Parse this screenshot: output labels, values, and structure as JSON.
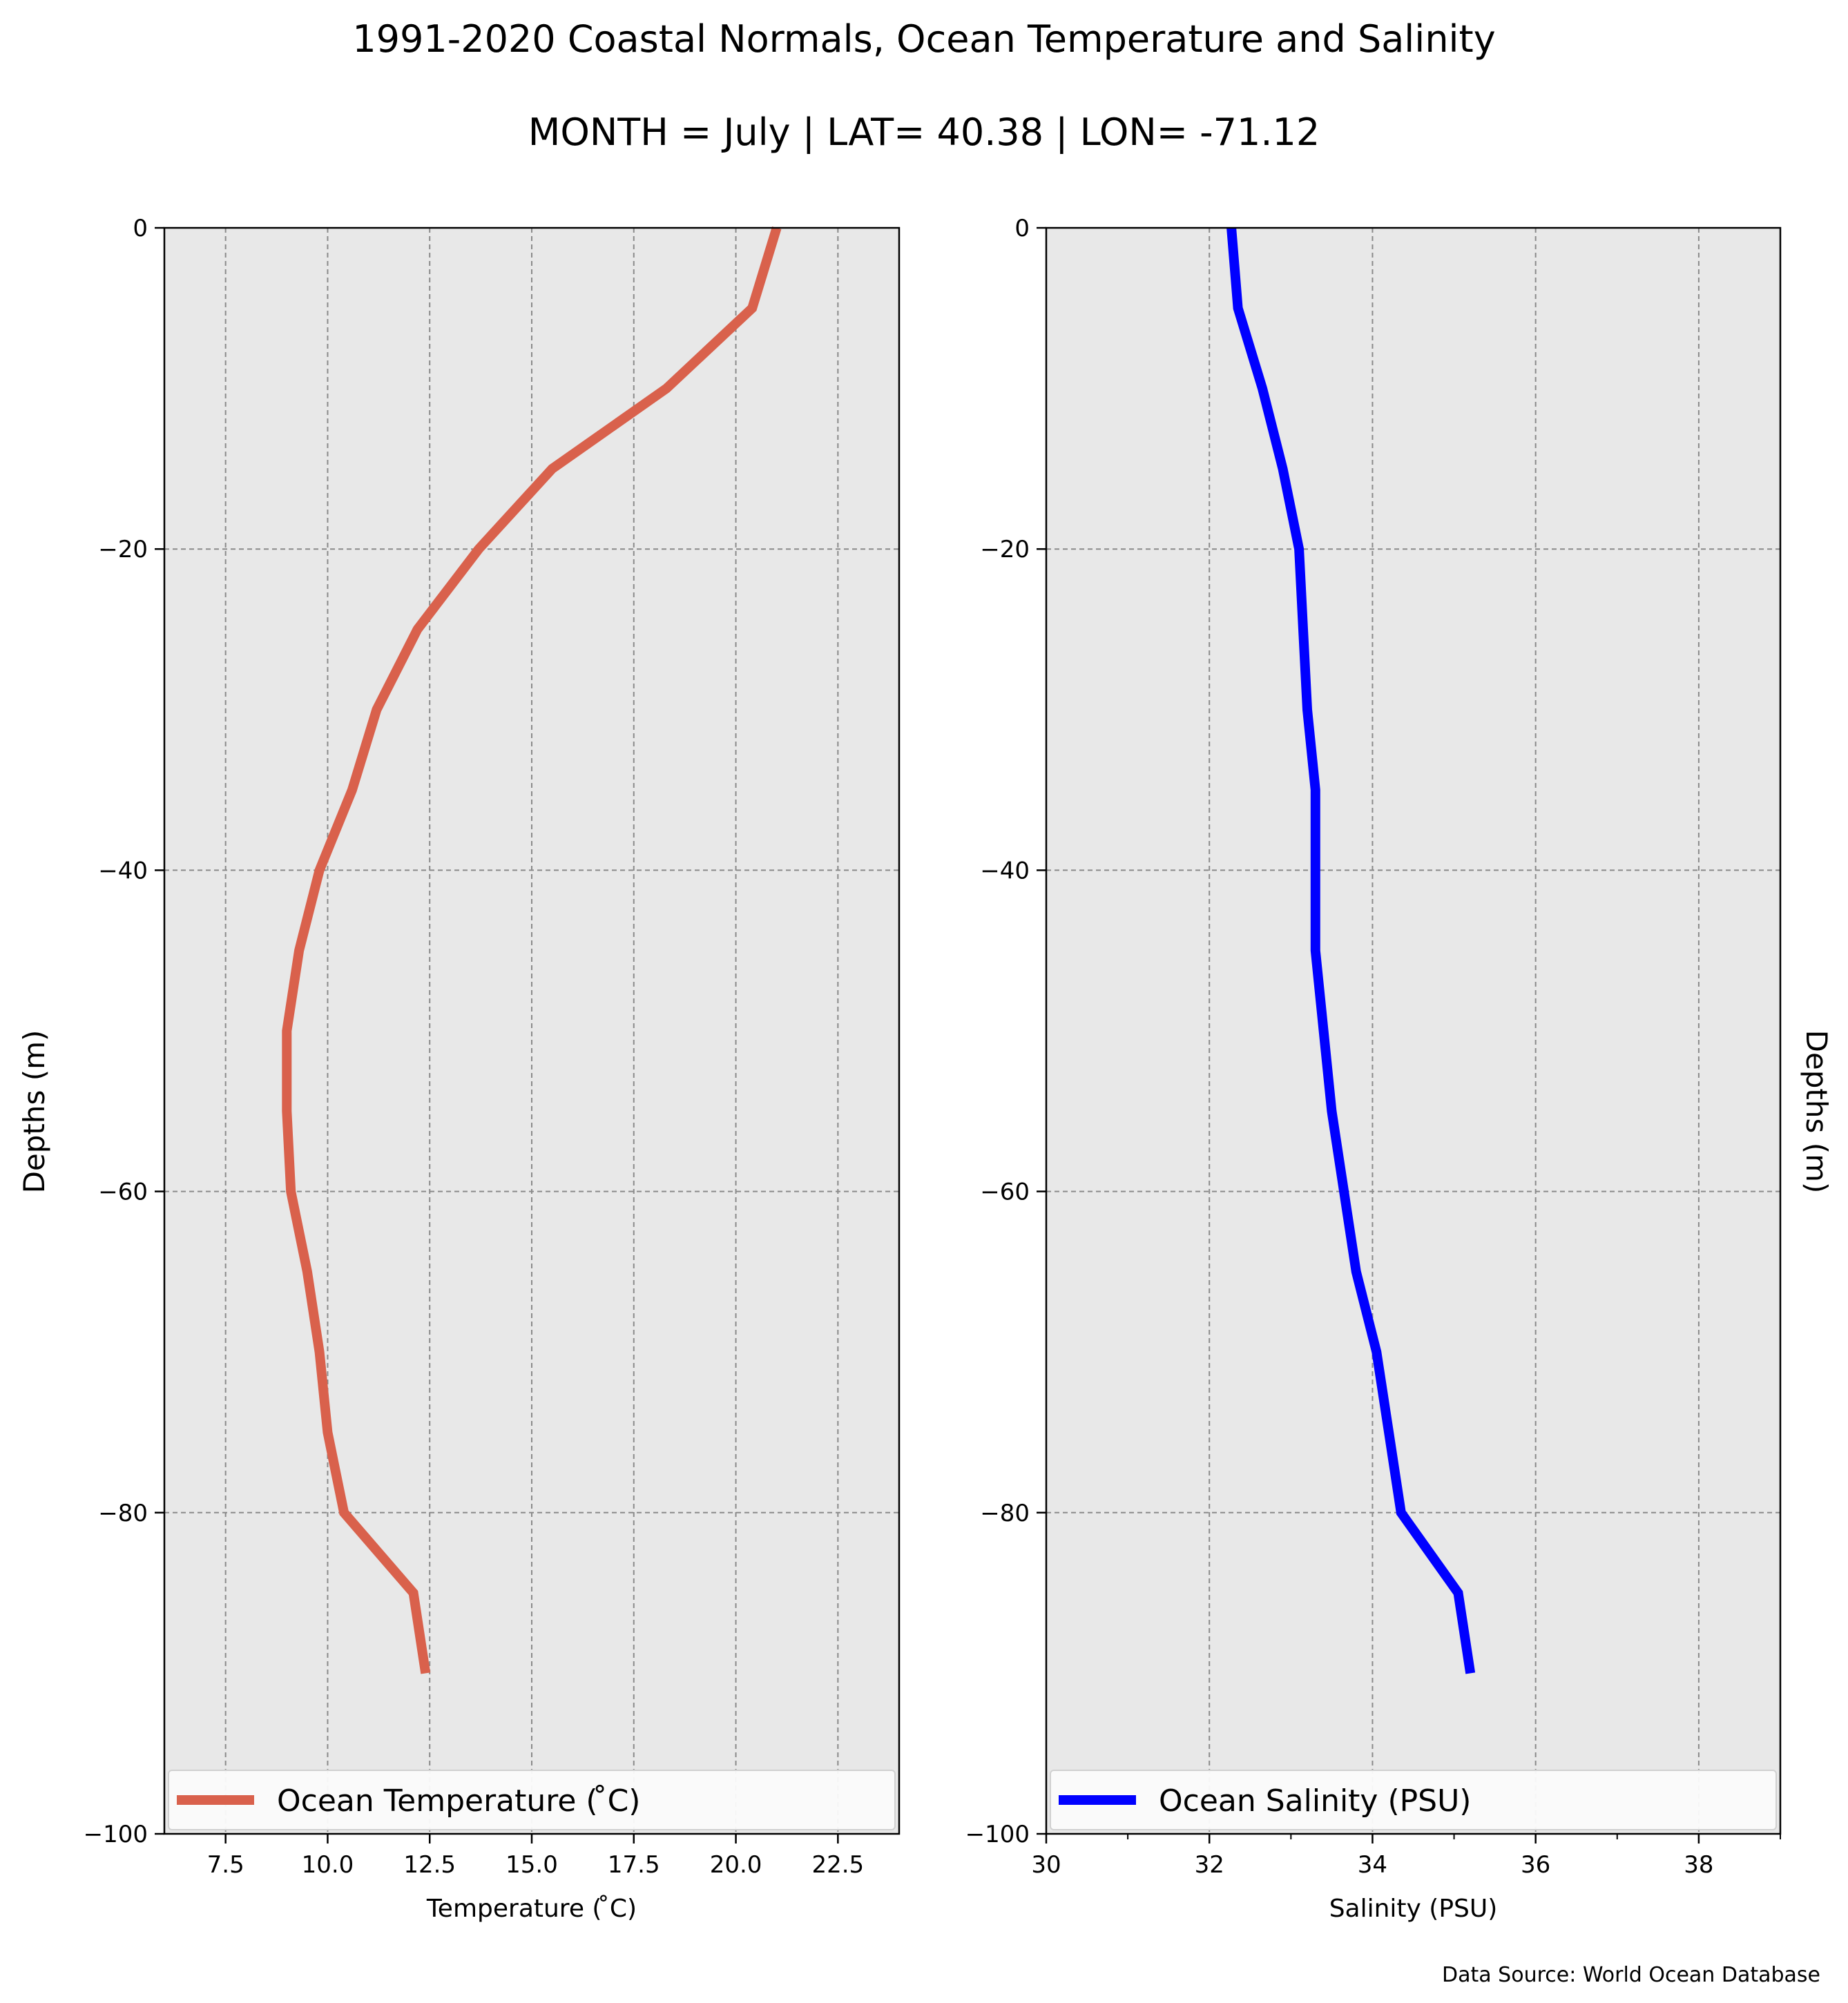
{
  "title": "1991-2020 Coastal Normals, Ocean Temperature and Salinity",
  "subtitle": "MONTH = July | LAT= 40.38 | LON= -71.12",
  "source": "Data Source: World Ocean Database",
  "colors": {
    "temperature": "#d9614c",
    "salinity": "#0000ff",
    "plot_bg": "#e8e8e8",
    "grid": "#8a8a8a"
  },
  "chart_data": [
    {
      "type": "line",
      "xlabel": "Temperature ($^\\circ$C)",
      "xlabel_display": "Temperature ( ̊C)",
      "ylabel": "Depths (m)",
      "xlim": [
        6,
        24
      ],
      "ylim": [
        -100,
        0
      ],
      "xticks": [
        7.5,
        10.0,
        12.5,
        15.0,
        17.5,
        20.0,
        22.5
      ],
      "xtick_labels": [
        "7.5",
        "10.0",
        "12.5",
        "15.0",
        "17.5",
        "20.0",
        "22.5"
      ],
      "yticks": [
        0,
        -20,
        -40,
        -60,
        -80,
        -100
      ],
      "ytick_labels": [
        "0",
        "−20",
        "−40",
        "−60",
        "−80",
        "−100"
      ],
      "grid": true,
      "legend_position": "bottom",
      "series": [
        {
          "name": "Ocean Temperature ( ̊C)",
          "x": [
            21.0,
            20.4,
            18.3,
            15.5,
            13.7,
            12.2,
            11.2,
            10.6,
            9.8,
            9.3,
            9.0,
            9.0,
            9.1,
            9.5,
            9.8,
            10.0,
            10.4,
            12.1,
            12.4
          ],
          "y": [
            0,
            -5,
            -10,
            -15,
            -20,
            -25,
            -30,
            -35,
            -40,
            -45,
            -50,
            -55,
            -60,
            -65,
            -70,
            -75,
            -80,
            -85,
            -90
          ]
        }
      ]
    },
    {
      "type": "line",
      "xlabel": "Salinity (PSU)",
      "ylabel": "Depths (m)",
      "xlim": [
        30,
        39
      ],
      "ylim": [
        -100,
        0
      ],
      "xticks": [
        30,
        32,
        34,
        36,
        38
      ],
      "xtick_labels": [
        "30",
        "32",
        "34",
        "36",
        "38"
      ],
      "yticks": [
        0,
        -20,
        -40,
        -60,
        -80,
        -100
      ],
      "ytick_labels": [
        "0",
        "−20",
        "−40",
        "−60",
        "−80",
        "−100"
      ],
      "grid": true,
      "legend_position": "bottom",
      "series": [
        {
          "name": "Ocean Salinity (PSU)",
          "x": [
            32.27,
            32.35,
            32.65,
            32.9,
            33.1,
            33.15,
            33.2,
            33.3,
            33.3,
            33.3,
            33.4,
            33.5,
            33.65,
            33.8,
            34.05,
            34.2,
            34.35,
            35.05,
            35.2
          ],
          "y": [
            0,
            -5,
            -10,
            -15,
            -20,
            -25,
            -30,
            -35,
            -40,
            -45,
            -50,
            -55,
            -60,
            -65,
            -70,
            -75,
            -80,
            -85,
            -90
          ]
        }
      ]
    }
  ]
}
